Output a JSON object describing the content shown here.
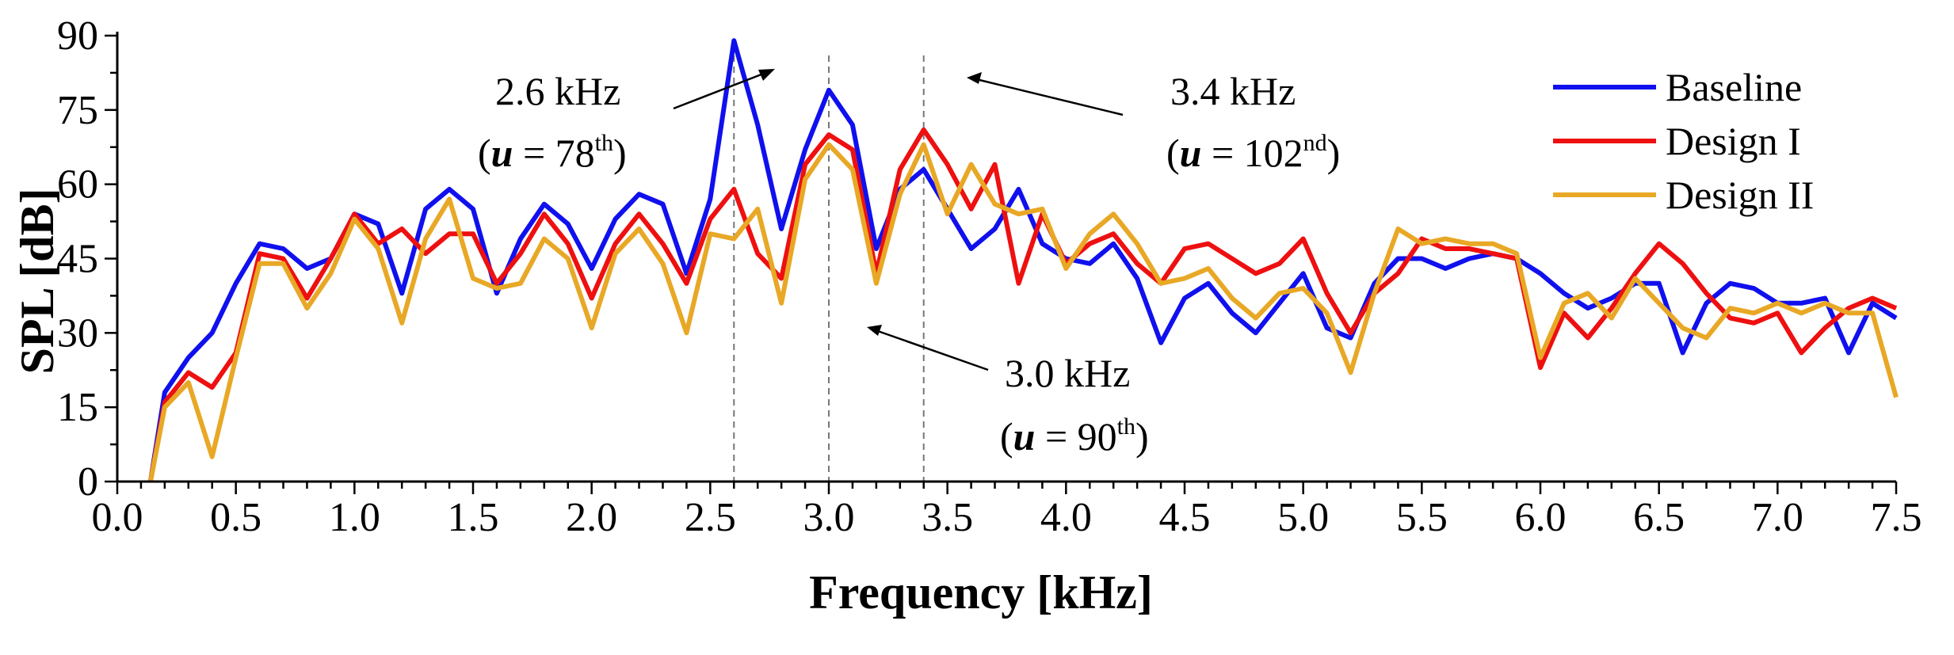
{
  "chart_data": {
    "type": "line",
    "title": "",
    "xlabel": "Frequency [kHz]",
    "ylabel": "SPL [dB]",
    "xlim": [
      0.0,
      7.5
    ],
    "ylim": [
      0,
      90
    ],
    "xticks": [
      "0.0",
      "0.5",
      "1.0",
      "1.5",
      "2.0",
      "2.5",
      "3.0",
      "3.5",
      "4.0",
      "4.5",
      "5.0",
      "5.5",
      "6.0",
      "6.5",
      "7.0",
      "7.5"
    ],
    "yticks": [
      "0",
      "15",
      "30",
      "45",
      "60",
      "75",
      "90"
    ],
    "x": [
      0.2,
      0.3,
      0.4,
      0.5,
      0.6,
      0.7,
      0.8,
      0.9,
      1.0,
      1.1,
      1.2,
      1.3,
      1.4,
      1.5,
      1.6,
      1.7,
      1.8,
      1.9,
      2.0,
      2.1,
      2.2,
      2.3,
      2.4,
      2.5,
      2.6,
      2.7,
      2.8,
      2.9,
      3.0,
      3.1,
      3.2,
      3.3,
      3.4,
      3.5,
      3.6,
      3.7,
      3.8,
      3.9,
      4.0,
      4.1,
      4.2,
      4.3,
      4.4,
      4.5,
      4.6,
      4.7,
      4.8,
      4.9,
      5.0,
      5.1,
      5.2,
      5.3,
      5.4,
      5.5,
      5.6,
      5.7,
      5.8,
      5.9,
      6.0,
      6.1,
      6.2,
      6.3,
      6.4,
      6.5,
      6.6,
      6.7,
      6.8,
      6.9,
      7.0,
      7.1,
      7.2,
      7.3,
      7.4,
      7.5
    ],
    "series": [
      {
        "name": "Baseline",
        "color": "#1010ee",
        "values": [
          18,
          25,
          30,
          40,
          48,
          47,
          43,
          45,
          54,
          52,
          38,
          55,
          59,
          55,
          38,
          49,
          56,
          52,
          43,
          53,
          58,
          56,
          42,
          57,
          89,
          72,
          51,
          67,
          79,
          72,
          47,
          59,
          63,
          55,
          47,
          51,
          59,
          48,
          45,
          44,
          48,
          41,
          28,
          37,
          40,
          34,
          30,
          36,
          42,
          31,
          29,
          40,
          45,
          45,
          43,
          45,
          46,
          45,
          42,
          38,
          35,
          37,
          40,
          40,
          26,
          36,
          40,
          39,
          36,
          36,
          37,
          26,
          36,
          33
        ]
      },
      {
        "name": "Design I",
        "color": "#ee1010",
        "values": [
          16,
          22,
          19,
          26,
          46,
          45,
          37,
          45,
          54,
          48,
          51,
          46,
          50,
          50,
          40,
          46,
          54,
          48,
          37,
          48,
          54,
          48,
          40,
          53,
          59,
          46,
          41,
          64,
          70,
          67,
          42,
          63,
          71,
          64,
          55,
          64,
          40,
          54,
          44,
          48,
          50,
          44,
          40,
          47,
          48,
          45,
          42,
          44,
          49,
          38,
          30,
          38,
          42,
          49,
          47,
          47,
          46,
          45,
          23,
          34,
          29,
          35,
          42,
          48,
          44,
          38,
          33,
          32,
          34,
          26,
          31,
          35,
          37,
          35
        ]
      },
      {
        "name": "Design II",
        "color": "#e8a826",
        "values": [
          15,
          20,
          5,
          25,
          44,
          44,
          35,
          42,
          53,
          47,
          32,
          49,
          57,
          41,
          39,
          40,
          49,
          45,
          31,
          46,
          51,
          44,
          30,
          50,
          49,
          55,
          36,
          61,
          68,
          63,
          40,
          58,
          68,
          54,
          64,
          56,
          54,
          55,
          43,
          50,
          54,
          48,
          40,
          41,
          43,
          37,
          33,
          38,
          39,
          34,
          22,
          38,
          51,
          48,
          49,
          48,
          48,
          46,
          25,
          36,
          38,
          33,
          41,
          36,
          31,
          29,
          35,
          34,
          36,
          34,
          36,
          34,
          34,
          17
        ]
      }
    ],
    "vlines": [
      2.6,
      3.0,
      3.4
    ],
    "legend_position": "top-right",
    "annotations": [
      {
        "freq": "2.6 kHz",
        "u_value": "78",
        "u_sup": "th"
      },
      {
        "freq": "3.4 kHz",
        "u_value": "102",
        "u_sup": "nd"
      },
      {
        "freq": "3.0 kHz",
        "u_value": "90",
        "u_sup": "th"
      }
    ],
    "u_symbol": "u",
    "u_equals": "="
  }
}
